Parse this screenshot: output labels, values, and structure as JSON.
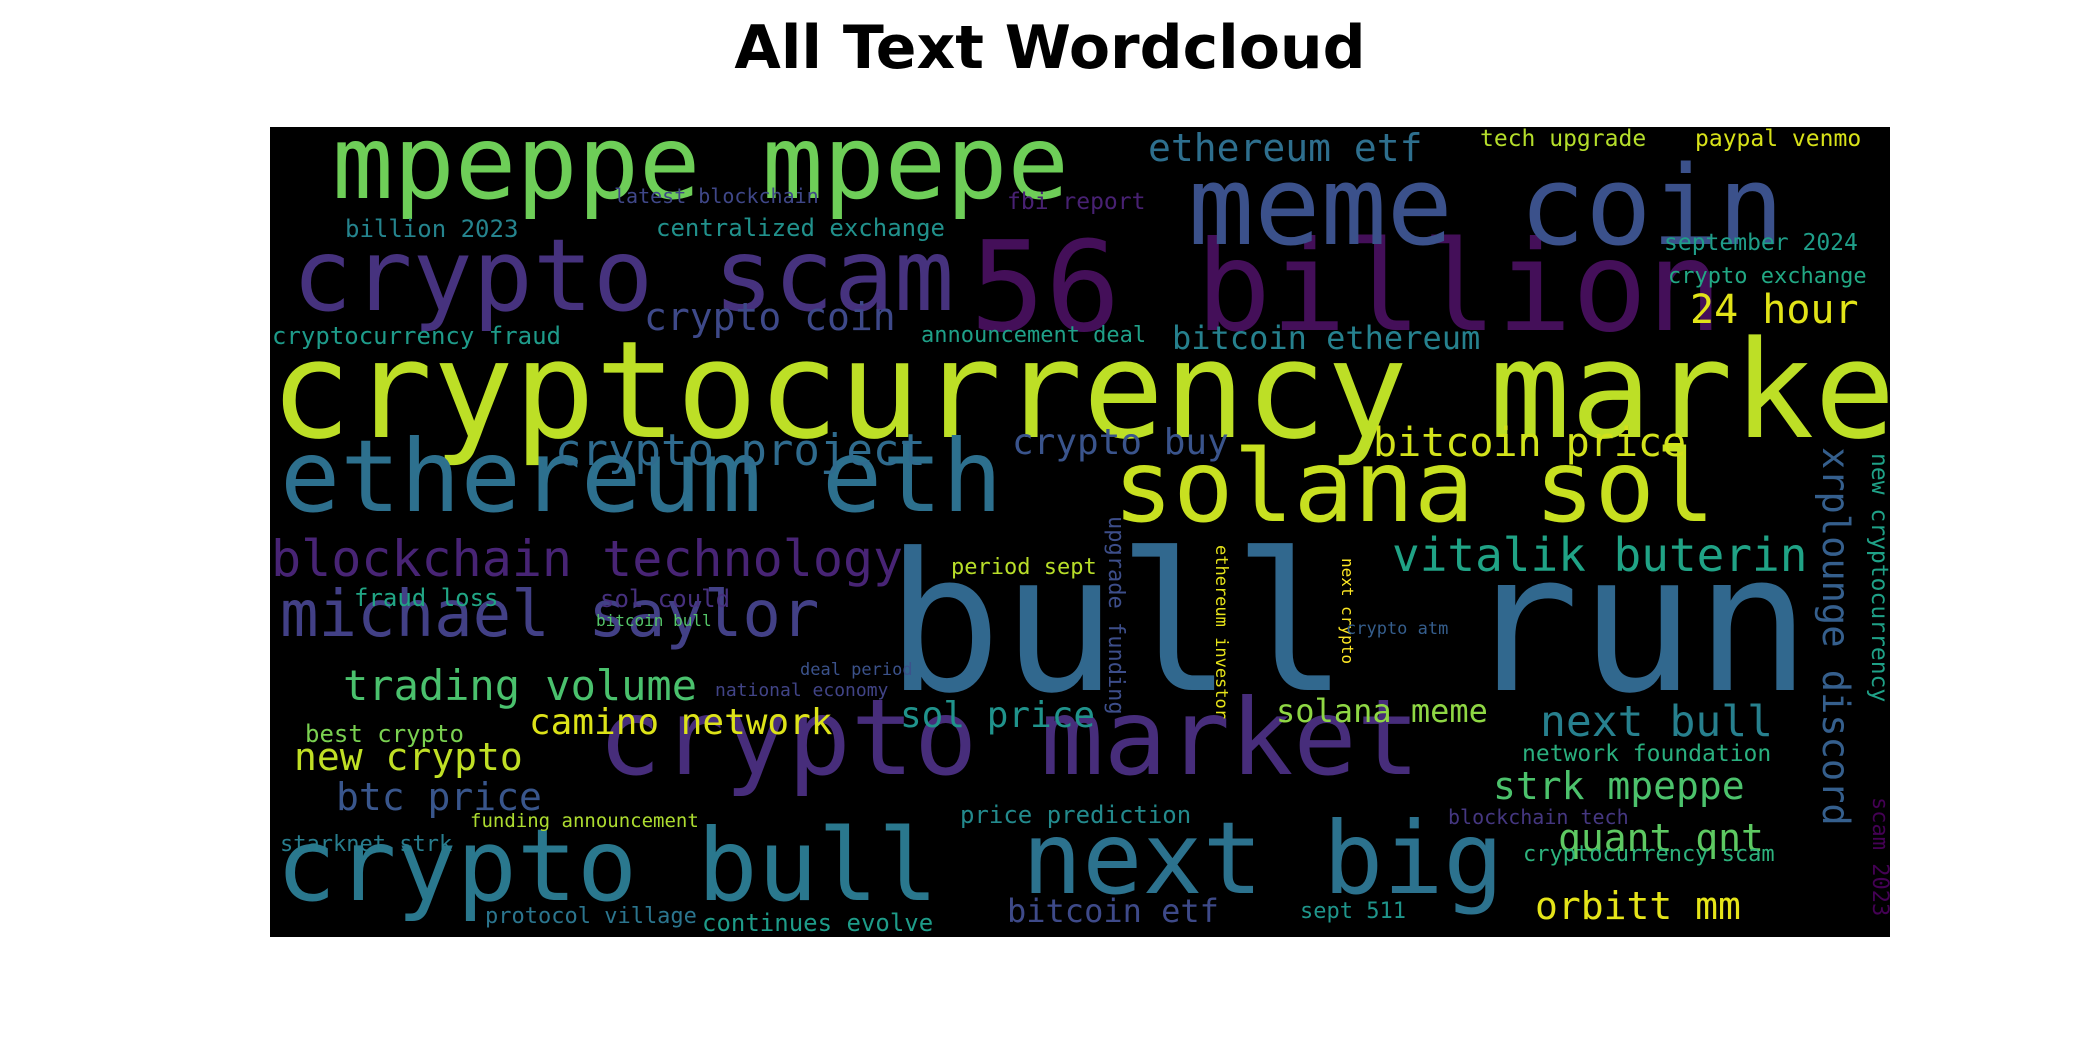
{
  "title": "All Text Wordcloud",
  "words": [
    {
      "text": "cryptocurrency market",
      "color": "#bddf26"
    },
    {
      "text": "bull run",
      "color": "#31688e"
    },
    {
      "text": "56 billion",
      "color": "#440f59"
    },
    {
      "text": "meme coin",
      "color": "#3b518b"
    },
    {
      "text": "mpeppe mpepe",
      "color": "#6ece58"
    },
    {
      "text": "crypto scam",
      "color": "#46327e"
    },
    {
      "text": "ethereum eth",
      "color": "#2d708e"
    },
    {
      "text": "solana sol",
      "color": "#c8e020"
    },
    {
      "text": "crypto market",
      "color": "#472d7b"
    },
    {
      "text": "crypto bull",
      "color": "#2a788e"
    },
    {
      "text": "next big",
      "color": "#2c728e"
    },
    {
      "text": "michael saylor",
      "color": "#424086"
    },
    {
      "text": "blockchain technology",
      "color": "#482475"
    },
    {
      "text": "vitalik buterin",
      "color": "#20a386"
    },
    {
      "text": "trading volume",
      "color": "#4ac16d"
    },
    {
      "text": "crypto project",
      "color": "#2f6b8e"
    },
    {
      "text": "bitcoin price",
      "color": "#d2e21b"
    },
    {
      "text": "ethereum etf",
      "color": "#2e6f8e"
    },
    {
      "text": "crypto coin",
      "color": "#3e4989"
    },
    {
      "text": "bitcoin ethereum",
      "color": "#26818e"
    },
    {
      "text": "24 hour",
      "color": "#e2e418"
    },
    {
      "text": "crypto buy",
      "color": "#3a548c"
    },
    {
      "text": "xrplounge discord",
      "color": "#355f8d"
    },
    {
      "text": "new cryptocurrency",
      "color": "#1fa187"
    },
    {
      "text": "camino network",
      "color": "#dde318"
    },
    {
      "text": "sol price",
      "color": "#20938c"
    },
    {
      "text": "solana meme",
      "color": "#8fd744"
    },
    {
      "text": "next bull",
      "color": "#27808e"
    },
    {
      "text": "new crypto",
      "color": "#c0df25"
    },
    {
      "text": "btc price",
      "color": "#39568c"
    },
    {
      "text": "strk mpeppe",
      "color": "#4cc26c"
    },
    {
      "text": "quant qnt",
      "color": "#5ec962"
    },
    {
      "text": "orbitt mm",
      "color": "#e5e419"
    },
    {
      "text": "bitcoin etf",
      "color": "#3e4a89"
    },
    {
      "text": "tech upgrade",
      "color": "#b5de2b"
    },
    {
      "text": "paypal venmo",
      "color": "#d8e219"
    },
    {
      "text": "latest blockchain",
      "color": "#3f4788"
    },
    {
      "text": "fbi report",
      "color": "#482173"
    },
    {
      "text": "billion 2023",
      "color": "#25848e"
    },
    {
      "text": "centralized exchange",
      "color": "#21918c"
    },
    {
      "text": "september 2024",
      "color": "#1f9e89"
    },
    {
      "text": "crypto exchange",
      "color": "#22a884"
    },
    {
      "text": "cryptocurrency fraud",
      "color": "#1e9b8a"
    },
    {
      "text": "announcement deal",
      "color": "#1fa088"
    },
    {
      "text": "fraud loss",
      "color": "#21a685"
    },
    {
      "text": "sol could",
      "color": "#46307e"
    },
    {
      "text": "bitcoin bull",
      "color": "#54c568"
    },
    {
      "text": "period sept",
      "color": "#b8de29"
    },
    {
      "text": "upgrade funding",
      "color": "#3d4e8a"
    },
    {
      "text": "ethereum investor",
      "color": "#e7e419"
    },
    {
      "text": "next crypto",
      "color": "#fde725"
    },
    {
      "text": "crypto atm",
      "color": "#355e8d"
    },
    {
      "text": "deal period",
      "color": "#3b528b"
    },
    {
      "text": "national economy",
      "color": "#414487"
    },
    {
      "text": "best crypto",
      "color": "#7ad151"
    },
    {
      "text": "network foundation",
      "color": "#2ab07f"
    },
    {
      "text": "price prediction",
      "color": "#238a8d"
    },
    {
      "text": "blockchain tech",
      "color": "#453781"
    },
    {
      "text": "scam 2023",
      "color": "#440154"
    },
    {
      "text": "funding announcement",
      "color": "#addc30"
    },
    {
      "text": "starknet strk",
      "color": "#287d8e"
    },
    {
      "text": "cryptocurrency scam",
      "color": "#2db27d"
    },
    {
      "text": "protocol village",
      "color": "#2b758e"
    },
    {
      "text": "continues evolve",
      "color": "#1e9c89"
    },
    {
      "text": "sept 511",
      "color": "#1f958b"
    }
  ]
}
